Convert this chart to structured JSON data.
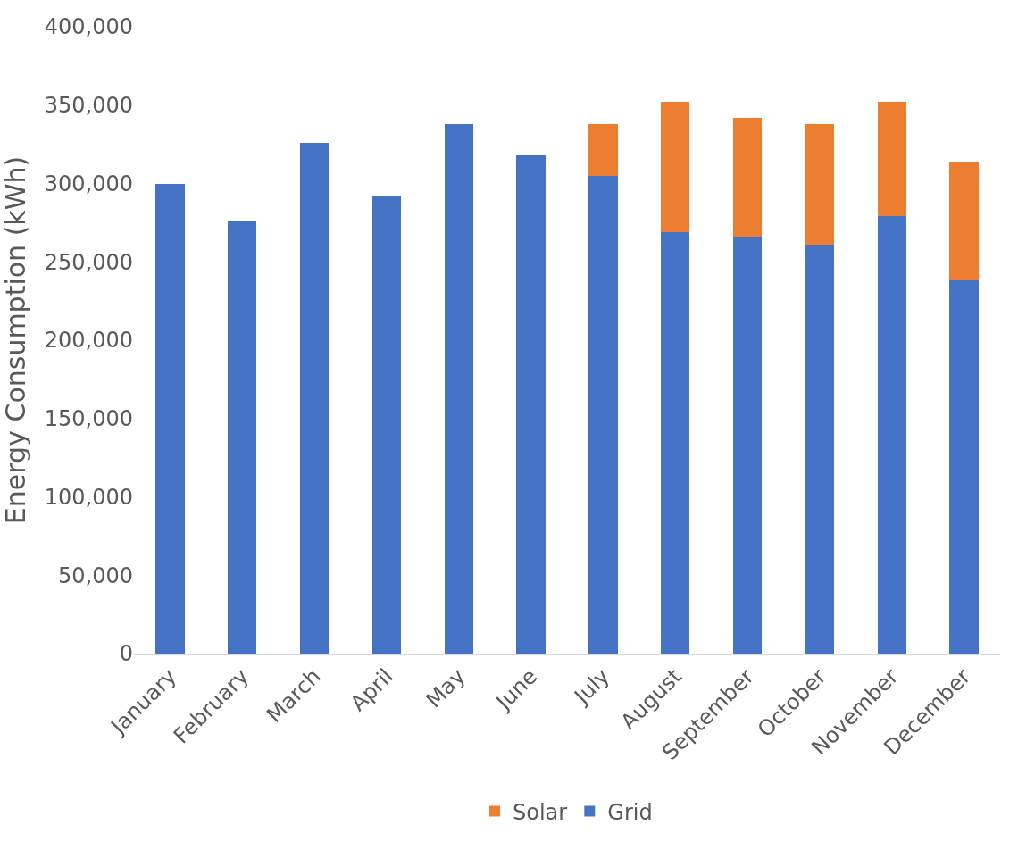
{
  "chart_data": {
    "type": "bar",
    "stacked": true,
    "ylabel": "Energy Consumption (kWh)",
    "categories": [
      "January",
      "February",
      "March",
      "April",
      "May",
      "June",
      "July",
      "August",
      "September",
      "October",
      "November",
      "December"
    ],
    "series": [
      {
        "name": "Grid",
        "color": "#4472c4",
        "values": [
          300000,
          276000,
          326000,
          292000,
          338000,
          318000,
          305000,
          269000,
          266000,
          261000,
          279000,
          238000
        ]
      },
      {
        "name": "Solar",
        "color": "#ed7d31",
        "values": [
          null,
          null,
          null,
          null,
          null,
          null,
          33000,
          83000,
          76000,
          77000,
          73000,
          76000
        ]
      }
    ],
    "ylim": [
      0,
      400000
    ],
    "yticks": [
      {
        "value": 0,
        "label": "0"
      },
      {
        "value": 50000,
        "label": "50,000"
      },
      {
        "value": 100000,
        "label": "100,000"
      },
      {
        "value": 150000,
        "label": "150,000"
      },
      {
        "value": 200000,
        "label": "200,000"
      },
      {
        "value": 250000,
        "label": "250,000"
      },
      {
        "value": 300000,
        "label": "300,000"
      },
      {
        "value": 350000,
        "label": "350,000"
      },
      {
        "value": 400000,
        "label": "400,000"
      }
    ],
    "legend": "bottom",
    "grid": false
  }
}
